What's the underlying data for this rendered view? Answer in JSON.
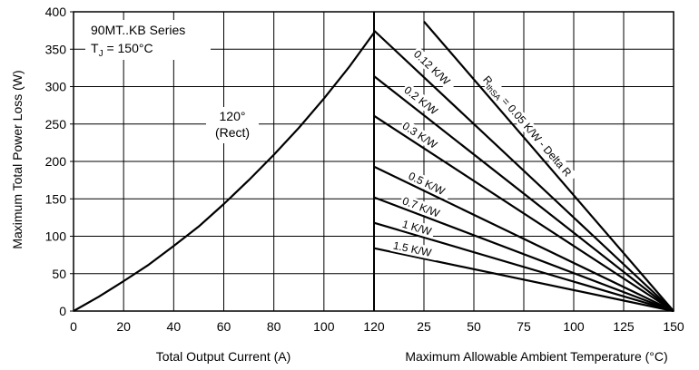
{
  "chart_data": {
    "type": "line",
    "y_axis": {
      "label": "Maximum Total Power Loss (W)",
      "range": [
        0,
        400
      ],
      "ticks": [
        "0",
        "50",
        "100",
        "150",
        "200",
        "250",
        "300",
        "350",
        "400"
      ]
    },
    "left_panel": {
      "x_axis": {
        "label": "Total Output Current (A)",
        "range": [
          0,
          120
        ],
        "ticks": [
          "0",
          "20",
          "40",
          "60",
          "80",
          "100",
          "120"
        ]
      },
      "annotation": {
        "series_line": "90MT..KB Series",
        "tj_symbol": "T",
        "tj_sub": "J",
        "tj_value": " = 150°C"
      },
      "curve_label": [
        "120°",
        "(Rect)"
      ],
      "series": [
        {
          "name": "120° (Rect)",
          "x": [
            0,
            10,
            20,
            30,
            40,
            50,
            60,
            70,
            80,
            90,
            100,
            110,
            120
          ],
          "y": [
            0,
            19,
            40,
            62,
            87,
            113,
            143,
            175,
            209,
            245,
            284,
            326,
            372
          ]
        }
      ]
    },
    "right_panel": {
      "x_axis": {
        "label": "Maximum Allowable Ambient Temperature (°C)",
        "range": [
          0,
          150
        ],
        "ticks": [
          "25",
          "50",
          "75",
          "100",
          "125",
          "150"
        ]
      },
      "series": [
        {
          "label": "= 0.05 K/W - Delta R",
          "x": [
            25,
            150
          ],
          "y": [
            387,
            0
          ]
        },
        {
          "label": "0.12 K/W",
          "x": [
            0,
            150
          ],
          "y": [
            375,
            0
          ]
        },
        {
          "label": "0.2 K/W",
          "x": [
            0,
            150
          ],
          "y": [
            314,
            0
          ]
        },
        {
          "label": "0.3 K/W",
          "x": [
            0,
            150
          ],
          "y": [
            261,
            0
          ]
        },
        {
          "label": "0.5 K/W",
          "x": [
            0,
            150
          ],
          "y": [
            193,
            0
          ]
        },
        {
          "label": "0.7 K/W",
          "x": [
            0,
            150
          ],
          "y": [
            152,
            0
          ]
        },
        {
          "label": "1 K/W",
          "x": [
            0,
            150
          ],
          "y": [
            118,
            0
          ]
        },
        {
          "label": "1.5 K/W",
          "x": [
            0,
            150
          ],
          "y": [
            84,
            0
          ]
        }
      ],
      "rthsa_symbol": "R",
      "rthsa_sub": "thSA"
    },
    "grid": true
  }
}
